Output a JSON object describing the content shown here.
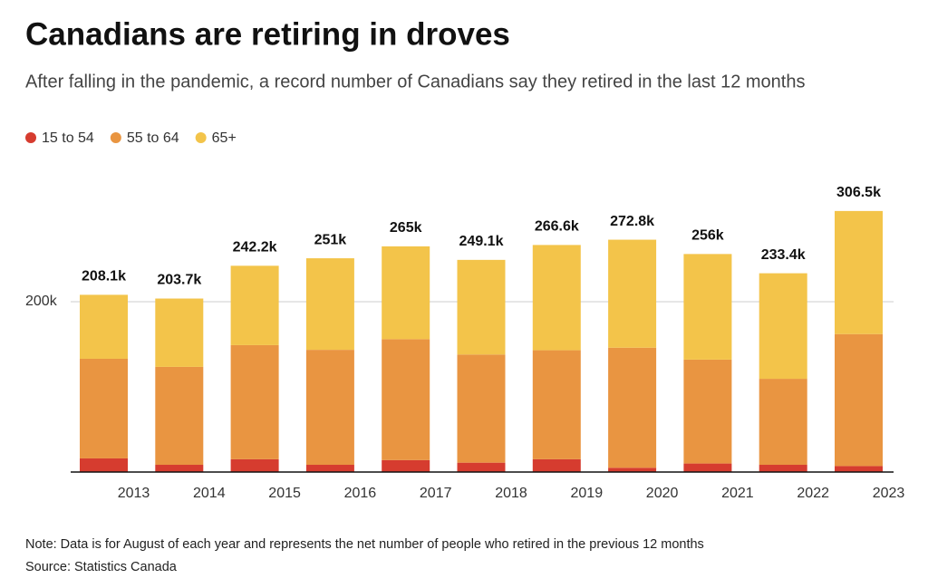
{
  "chart_data": {
    "type": "stacked_bar",
    "title": "Canadians are retiring in droves",
    "subtitle": "After falling in the pandemic, a record number of Canadians say they retired in the last 12 months",
    "categories": [
      "2013",
      "2014",
      "2015",
      "2016",
      "2017",
      "2018",
      "2019",
      "2020",
      "2021",
      "2022",
      "2023"
    ],
    "series": [
      {
        "name": "15 to 54",
        "color": "#d63c2f",
        "values": [
          16,
          8.5,
          15,
          8.5,
          14,
          11,
          15,
          5,
          10,
          8.5,
          7
        ]
      },
      {
        "name": "55 to 64",
        "color": "#e99541",
        "values": [
          117,
          115,
          134,
          135,
          142,
          127,
          128,
          141,
          122,
          101,
          155
        ]
      },
      {
        "name": "65+",
        "color": "#f3c44a",
        "values": [
          75.1,
          80.2,
          93.2,
          107.5,
          109,
          111.1,
          123.6,
          126.8,
          124,
          123.9,
          144.5
        ]
      }
    ],
    "totals": {
      "values": [
        208.1,
        203.7,
        242.2,
        251,
        265,
        249.1,
        266.6,
        272.8,
        256,
        233.4,
        306.5
      ],
      "value_labels": [
        "208.1k",
        "203.7k",
        "242.2k",
        "251k",
        "265k",
        "249.1k",
        "266.6k",
        "272.8k",
        "256k",
        "233.4k",
        "306.5k"
      ]
    },
    "ylim": [
      0,
      350
    ],
    "yticks": [
      {
        "value": 200,
        "label": "200k"
      }
    ],
    "grid": true,
    "legend": "top-left",
    "note": "Note: Data is for August of each year and represents the net number of people who retired in the previous 12 months",
    "source": "Source: Statistics Canada"
  }
}
